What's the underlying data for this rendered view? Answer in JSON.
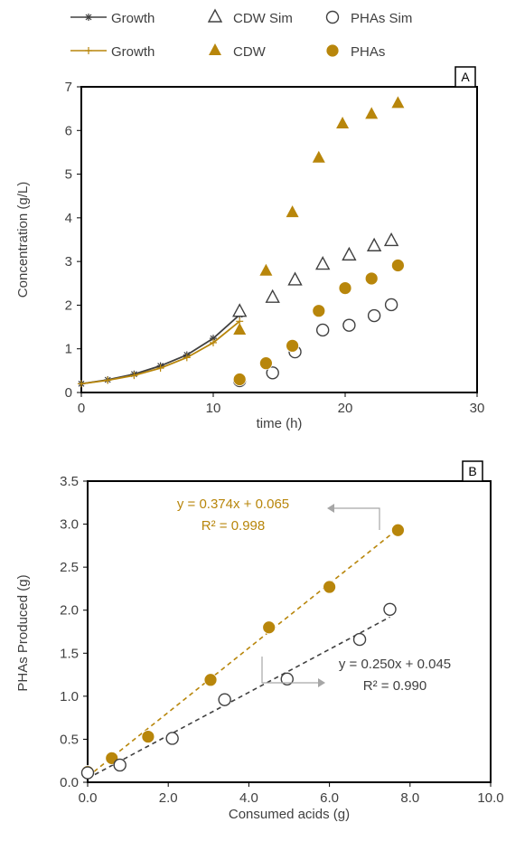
{
  "colors": {
    "gold": "#b8860b",
    "dark": "#404040",
    "arrow": "#a6a6a6"
  },
  "legend": [
    {
      "label": "Growth",
      "marker": "star-line",
      "color": "#404040"
    },
    {
      "label": "CDW Sim",
      "marker": "open-triangle",
      "color": "#404040"
    },
    {
      "label": "PHAs Sim",
      "marker": "open-circle",
      "color": "#404040"
    },
    {
      "label": "Growth",
      "marker": "plus-line",
      "color": "#b8860b"
    },
    {
      "label": "CDW",
      "marker": "filled-triangle",
      "color": "#b8860b"
    },
    {
      "label": "PHAs",
      "marker": "filled-circle",
      "color": "#b8860b"
    }
  ],
  "chart_data": [
    {
      "panel": "A",
      "type": "scatter",
      "xlabel": "time (h)",
      "ylabel": "Concentration (g/L)",
      "xlim": [
        0,
        30
      ],
      "ylim": [
        0,
        7
      ],
      "xticks": [
        0,
        10,
        20,
        30
      ],
      "yticks": [
        0,
        1,
        2,
        3,
        4,
        5,
        6,
        7
      ],
      "series": [
        {
          "name": "Growth",
          "kind": "line-star",
          "color": "#404040",
          "x": [
            0,
            2,
            4,
            6,
            8,
            10,
            12
          ],
          "y": [
            0.2,
            0.29,
            0.42,
            0.61,
            0.86,
            1.24,
            1.78
          ]
        },
        {
          "name": "Growth",
          "kind": "line-plus",
          "color": "#b8860b",
          "x": [
            0,
            2,
            4,
            6,
            8,
            10,
            12
          ],
          "y": [
            0.2,
            0.28,
            0.39,
            0.56,
            0.8,
            1.14,
            1.63
          ]
        },
        {
          "name": "CDW Sim",
          "kind": "open-triangle",
          "color": "#404040",
          "x": [
            12,
            14.5,
            16.2,
            18.3,
            20.3,
            22.2,
            23.5
          ],
          "y": [
            1.85,
            2.17,
            2.57,
            2.93,
            3.14,
            3.35,
            3.47
          ]
        },
        {
          "name": "PHAs Sim",
          "kind": "open-circle",
          "color": "#404040",
          "x": [
            12,
            14.5,
            16.2,
            18.3,
            20.3,
            22.2,
            23.5
          ],
          "y": [
            0.27,
            0.45,
            0.93,
            1.43,
            1.54,
            1.76,
            2.01
          ]
        },
        {
          "name": "CDW",
          "kind": "filled-triangle",
          "color": "#b8860b",
          "x": [
            12,
            14,
            16,
            18,
            19.8,
            22,
            24
          ],
          "y": [
            1.43,
            2.78,
            4.12,
            5.37,
            6.15,
            6.37,
            6.62
          ]
        },
        {
          "name": "PHAs",
          "kind": "filled-circle",
          "color": "#b8860b",
          "x": [
            12,
            14,
            16,
            18,
            20,
            22,
            24
          ],
          "y": [
            0.3,
            0.67,
            1.07,
            1.87,
            2.39,
            2.61,
            2.91
          ]
        }
      ]
    },
    {
      "panel": "B",
      "type": "scatter",
      "xlabel": "Consumed acids (g)",
      "ylabel": "PHAs Produced (g)",
      "xlim": [
        0,
        10
      ],
      "ylim": [
        0,
        3.5
      ],
      "xticks": [
        "0.0",
        "2.0",
        "4.0",
        "6.0",
        "8.0",
        "10.0"
      ],
      "yticks": [
        "0.0",
        "0.5",
        "1.0",
        "1.5",
        "2.0",
        "2.5",
        "3.0",
        "3.5"
      ],
      "series": [
        {
          "kind": "filled-circle",
          "color": "#b8860b",
          "x": [
            0,
            0.6,
            1.5,
            3.05,
            4.5,
            6.0,
            7.7
          ],
          "y": [
            0.12,
            0.28,
            0.53,
            1.19,
            1.8,
            2.27,
            2.93
          ]
        },
        {
          "kind": "open-circle",
          "color": "#404040",
          "x": [
            0,
            0.8,
            2.1,
            3.4,
            4.95,
            6.75,
            7.5
          ],
          "y": [
            0.11,
            0.2,
            0.51,
            0.96,
            1.2,
            1.66,
            2.01
          ]
        }
      ],
      "fits": [
        {
          "slope": 0.374,
          "intercept": 0.065,
          "x_range": [
            0,
            7.7
          ],
          "color": "#b8860b",
          "equation": "y = 0.374x + 0.065",
          "r2": "R² = 0.998"
        },
        {
          "slope": 0.25,
          "intercept": 0.045,
          "x_range": [
            0,
            7.5
          ],
          "color": "#404040",
          "equation": "y = 0.250x + 0.045",
          "r2": "R² = 0.990"
        }
      ]
    }
  ]
}
